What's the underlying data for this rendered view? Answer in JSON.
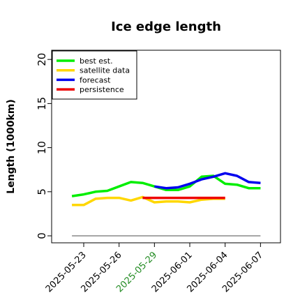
{
  "chart_data": {
    "type": "line",
    "title": "Ice edge length",
    "xlabel": "",
    "ylabel": "Length (1000km)",
    "ylim": [
      0,
      21
    ],
    "yticks": [
      0,
      5,
      10,
      15,
      20
    ],
    "xlim": [
      "2025-05-21",
      "2025-06-09"
    ],
    "xticks": [
      "2025-05-23",
      "2025-05-26",
      "2025-05-29",
      "2025-06-01",
      "2025-06-04",
      "2025-06-07"
    ],
    "highlighted_xtick": "2025-05-29",
    "highlight_color": "#228B22",
    "grid": false,
    "legend_position": "top-left",
    "zero_line": {
      "y": 0,
      "from": "2025-05-22",
      "to": "2025-06-07",
      "color": "#888888"
    },
    "series": [
      {
        "name": "best est.",
        "color": "#00EE00",
        "x": [
          "2025-05-22",
          "2025-05-23",
          "2025-05-24",
          "2025-05-25",
          "2025-05-26",
          "2025-05-27",
          "2025-05-28",
          "2025-05-29",
          "2025-05-30",
          "2025-05-31",
          "2025-06-01",
          "2025-06-02",
          "2025-06-03",
          "2025-06-04",
          "2025-06-05",
          "2025-06-06",
          "2025-06-07"
        ],
        "values": [
          4.5,
          4.7,
          5.0,
          5.1,
          5.6,
          6.1,
          6.0,
          5.6,
          5.2,
          5.2,
          5.6,
          6.7,
          6.8,
          5.9,
          5.8,
          5.4,
          5.4
        ]
      },
      {
        "name": "satellite data",
        "color": "#FFD700",
        "x": [
          "2025-05-22",
          "2025-05-23",
          "2025-05-24",
          "2025-05-25",
          "2025-05-26",
          "2025-05-27",
          "2025-05-28",
          "2025-05-29",
          "2025-05-30",
          "2025-05-31",
          "2025-06-01",
          "2025-06-02",
          "2025-06-03",
          "2025-06-04"
        ],
        "values": [
          3.5,
          3.5,
          4.2,
          4.3,
          4.3,
          4.0,
          4.4,
          3.8,
          3.9,
          3.9,
          3.8,
          4.1,
          4.2,
          4.2
        ]
      },
      {
        "name": "forecast",
        "color": "#0000EE",
        "x": [
          "2025-05-29",
          "2025-05-30",
          "2025-05-31",
          "2025-06-01",
          "2025-06-02",
          "2025-06-03",
          "2025-06-04",
          "2025-06-05",
          "2025-06-06",
          "2025-06-07"
        ],
        "values": [
          5.6,
          5.4,
          5.5,
          5.9,
          6.4,
          6.7,
          7.1,
          6.8,
          6.1,
          6.0
        ]
      },
      {
        "name": "persistence",
        "color": "#EE0000",
        "x": [
          "2025-05-28",
          "2025-06-04"
        ],
        "values": [
          4.3,
          4.3
        ]
      }
    ]
  }
}
